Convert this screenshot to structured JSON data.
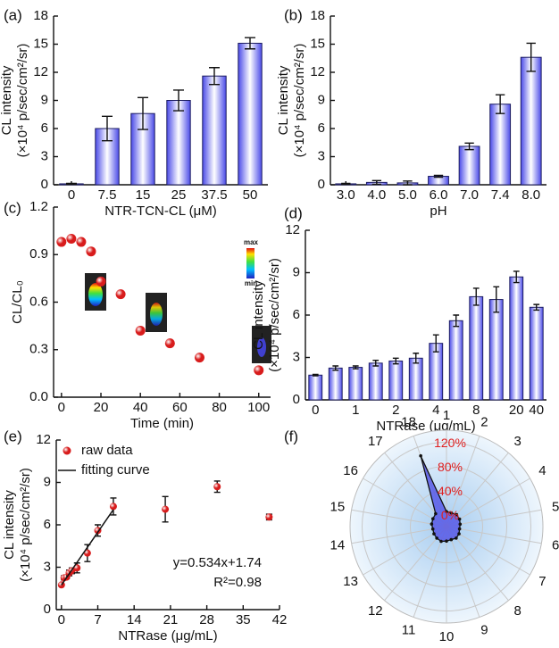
{
  "chart_data": [
    {
      "type": "bar",
      "panel_label": "(a)",
      "xlabel": "NTR-TCN-CL (μM)",
      "ylabel": [
        "CL intensity",
        "(×10⁴ p/sec/cm²/sr)"
      ],
      "categories": [
        "0",
        "7.5",
        "15",
        "25",
        "37.5",
        "50"
      ],
      "values": [
        0.1,
        6.0,
        7.6,
        9.0,
        11.6,
        15.1
      ],
      "errors": [
        0.05,
        1.3,
        1.7,
        1.1,
        0.9,
        0.6
      ],
      "color": "#4a4ae8",
      "ylim": [
        0,
        18
      ],
      "yticks": [
        0,
        3,
        6,
        9,
        12,
        15,
        18
      ]
    },
    {
      "type": "bar",
      "panel_label": "(b)",
      "xlabel": "pH",
      "ylabel": [
        "CL intensity",
        "(×10⁴ p/sec/cm²/sr)"
      ],
      "categories": [
        "3.0",
        "4.0",
        "5.0",
        "6.0",
        "7.0",
        "7.4",
        "8.0"
      ],
      "values": [
        0.1,
        0.25,
        0.2,
        0.9,
        4.1,
        8.6,
        13.6
      ],
      "errors": [
        0.05,
        0.2,
        0.2,
        0.1,
        0.35,
        1.0,
        1.5
      ],
      "color": "#4a4ae8",
      "ylim": [
        0,
        18
      ],
      "yticks": [
        0,
        3,
        6,
        9,
        12,
        15,
        18
      ]
    },
    {
      "type": "scatter",
      "panel_label": "(c)",
      "xlabel": "Time (min)",
      "ylabel": [
        "CL/CL₀"
      ],
      "colorbar_labels": [
        "max",
        "min"
      ],
      "series": [
        {
          "color": "#d81c1c",
          "x": [
            0,
            5,
            10,
            15,
            20,
            30,
            40,
            55,
            70,
            100
          ],
          "values": [
            0.98,
            1.0,
            0.98,
            0.92,
            0.73,
            0.65,
            0.42,
            0.34,
            0.25,
            0.17
          ],
          "mode": "markers"
        }
      ],
      "xlim": [
        -4,
        106
      ],
      "xticks": [
        0,
        20,
        40,
        60,
        80,
        100
      ],
      "ylim": [
        0,
        1.2
      ],
      "yticks": [
        {
          "value": 0,
          "label": "0.0"
        },
        0.3,
        0.6,
        0.9,
        1.2
      ]
    },
    {
      "type": "bar",
      "panel_label": "(d)",
      "xlabel": "NTRase (μg/mL)",
      "ylabel": [
        "CL intensity",
        "(×10⁴ p/sec/cm²/sr)"
      ],
      "categories": [
        "0",
        null,
        "1",
        null,
        "2",
        null,
        "4",
        null,
        "8",
        null,
        "20",
        "40"
      ],
      "values": [
        1.75,
        2.25,
        2.3,
        2.6,
        2.75,
        2.95,
        4.0,
        5.6,
        7.3,
        7.1,
        8.7,
        6.55
      ],
      "errors": [
        0.05,
        0.15,
        0.1,
        0.2,
        0.2,
        0.35,
        0.6,
        0.4,
        0.6,
        0.9,
        0.4,
        0.2
      ],
      "color": "#4a4ae8",
      "ylim": [
        0,
        12
      ],
      "yticks": [
        0,
        3,
        6,
        9,
        12
      ]
    },
    {
      "type": "scatter",
      "panel_label": "(e)",
      "xlabel": "NTRase (μg/mL)",
      "ylabel": [
        "CL intensity",
        "(×10⁴ p/sec/cm²/sr)"
      ],
      "annotations": [
        "y=0.534x+1.74",
        "R²=0.98"
      ],
      "series": [
        {
          "name": "raw data",
          "color": "#d81c1c",
          "mode": "markers",
          "x": [
            0,
            0.5,
            1,
            1.5,
            2,
            3,
            5,
            7,
            10,
            20,
            30,
            40
          ],
          "values": [
            1.75,
            2.25,
            2.3,
            2.6,
            2.75,
            2.95,
            4.0,
            5.6,
            7.3,
            7.1,
            8.7,
            6.55
          ],
          "errors": [
            0.05,
            0.15,
            0.1,
            0.2,
            0.2,
            0.35,
            0.6,
            0.4,
            0.6,
            0.9,
            0.4,
            0.2
          ]
        },
        {
          "name": "fitting curve",
          "color": "#111111",
          "mode": "line",
          "x": [
            0,
            10
          ],
          "values": [
            1.74,
            7.08
          ]
        }
      ],
      "xlim": [
        -1,
        42
      ],
      "xticks": [
        0,
        7,
        14,
        21,
        28,
        35,
        42
      ],
      "ylim": [
        0,
        12
      ],
      "yticks": [
        0,
        3,
        6,
        9,
        12
      ]
    },
    {
      "type": "radar",
      "panel_label": "(f)",
      "categories": [
        "1",
        "2",
        "3",
        "4",
        "5",
        "6",
        "7",
        "8",
        "9",
        "10",
        "11",
        "12",
        "13",
        "14",
        "15",
        "16",
        "17",
        "18"
      ],
      "values": [
        5,
        4,
        6,
        5,
        3,
        2,
        4,
        5,
        3,
        4,
        6,
        5,
        4,
        3,
        5,
        6,
        8,
        105
      ],
      "color": "#4a4ae8",
      "rlim": [
        -20,
        140
      ],
      "rticks": [
        {
          "value": 0,
          "label": "0%"
        },
        {
          "value": 40,
          "label": "40%"
        },
        {
          "value": 80,
          "label": "80%"
        },
        {
          "value": 120,
          "label": "120%"
        }
      ]
    }
  ]
}
